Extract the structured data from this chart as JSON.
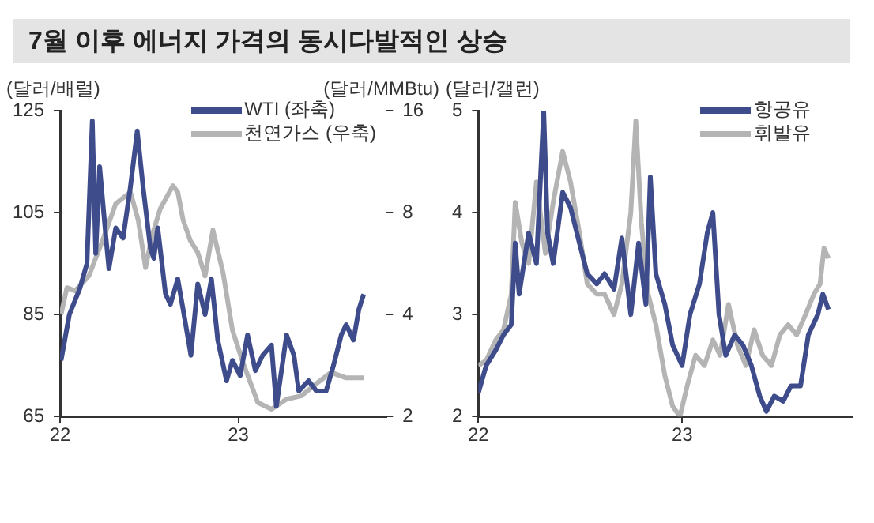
{
  "chart_data": [
    {
      "type": "line",
      "title": "7월 이후 에너지 가격의 동시다발적인 상승",
      "ylabel": "(달러/배럴)",
      "y2label": "(달러/MMBtu)",
      "log": "y2",
      "grid": false,
      "legend": "top right",
      "marker": "none",
      "line_style": "solid",
      "xlim": [
        "2022-01-01",
        "2023-11-01"
      ],
      "xticks": [
        {
          "value": "2022-01-01",
          "label": "22"
        },
        {
          "value": "2023-01-01",
          "label": "23"
        }
      ],
      "ylim": [
        65,
        125
      ],
      "yticks": [
        65,
        85,
        105,
        125
      ],
      "y2lim": [
        2,
        16
      ],
      "y2ticks": [
        2,
        4,
        8,
        16
      ],
      "series": [
        {
          "name": "WTI (좌축)",
          "color": "#3f4c8c",
          "x": [
            "2022-01-03",
            "2022-01-20",
            "2022-02-10",
            "2022-02-25",
            "2022-03-08",
            "2022-03-15",
            "2022-03-23",
            "2022-04-05",
            "2022-04-11",
            "2022-04-25",
            "2022-05-10",
            "2022-05-25",
            "2022-06-08",
            "2022-06-20",
            "2022-07-05",
            "2022-07-12",
            "2022-07-20",
            "2022-08-05",
            "2022-08-15",
            "2022-08-30",
            "2022-09-10",
            "2022-09-26",
            "2022-10-10",
            "2022-10-25",
            "2022-11-07",
            "2022-11-20",
            "2022-12-08",
            "2022-12-20",
            "2023-01-05",
            "2023-01-20",
            "2023-02-05",
            "2023-02-20",
            "2023-03-10",
            "2023-03-20",
            "2023-04-10",
            "2023-04-25",
            "2023-05-05",
            "2023-05-25",
            "2023-06-10",
            "2023-06-30",
            "2023-07-15",
            "2023-07-31",
            "2023-08-10",
            "2023-08-25",
            "2023-09-05",
            "2023-09-15"
          ],
          "values": [
            76,
            85,
            90,
            95,
            123,
            97,
            114,
            100,
            94,
            102,
            100,
            110,
            121,
            110,
            98,
            96,
            102,
            89,
            87,
            92,
            86,
            77,
            91,
            85,
            92,
            80,
            72,
            76,
            73,
            81,
            74,
            77,
            79,
            67,
            81,
            77,
            70,
            72,
            70,
            70,
            75,
            81,
            83,
            80,
            86,
            89
          ]
        },
        {
          "name": "천연가스 (우축)",
          "color": "#b4b4b4",
          "axis": "y2",
          "x": [
            "2022-01-03",
            "2022-01-15",
            "2022-02-01",
            "2022-03-01",
            "2022-04-01",
            "2022-04-25",
            "2022-05-25",
            "2022-06-10",
            "2022-06-25",
            "2022-07-08",
            "2022-07-25",
            "2022-08-20",
            "2022-08-30",
            "2022-09-10",
            "2022-09-25",
            "2022-10-10",
            "2022-10-25",
            "2022-11-10",
            "2022-12-01",
            "2022-12-20",
            "2023-01-10",
            "2023-02-10",
            "2023-03-10",
            "2023-04-10",
            "2023-05-10",
            "2023-06-10",
            "2023-07-10",
            "2023-08-10",
            "2023-09-15"
          ],
          "values": [
            4,
            4.8,
            4.7,
            5.2,
            6.8,
            8.5,
            9.2,
            7.6,
            5.5,
            6.8,
            8.2,
            9.6,
            9.2,
            7.6,
            6.6,
            6.1,
            5.2,
            7.1,
            5.3,
            3.6,
            2.9,
            2.2,
            2.1,
            2.25,
            2.3,
            2.5,
            2.7,
            2.6,
            2.6
          ]
        }
      ]
    },
    {
      "type": "line",
      "ylabel": "(달러/갤런)",
      "grid": false,
      "legend": "top right",
      "marker": "none",
      "line_style": "solid",
      "xlim": [
        "2022-01-01",
        "2023-11-01"
      ],
      "xticks": [
        {
          "value": "2022-01-01",
          "label": "22"
        },
        {
          "value": "2023-01-01",
          "label": "23"
        }
      ],
      "ylim": [
        2,
        5
      ],
      "yticks": [
        2,
        3,
        4,
        5
      ],
      "series": [
        {
          "name": "항공유",
          "color": "#3f4c8c",
          "x": [
            "2022-01-01",
            "2022-01-15",
            "2022-02-01",
            "2022-02-15",
            "2022-03-01",
            "2022-03-08",
            "2022-03-15",
            "2022-04-01",
            "2022-04-15",
            "2022-04-28",
            "2022-05-05",
            "2022-05-15",
            "2022-06-01",
            "2022-06-15",
            "2022-07-01",
            "2022-07-15",
            "2022-08-01",
            "2022-08-15",
            "2022-09-01",
            "2022-09-15",
            "2022-10-01",
            "2022-10-15",
            "2022-10-28",
            "2022-11-05",
            "2022-11-15",
            "2022-12-01",
            "2022-12-15",
            "2023-01-01",
            "2023-01-15",
            "2023-02-01",
            "2023-02-15",
            "2023-02-25",
            "2023-03-08",
            "2023-03-20",
            "2023-04-05",
            "2023-04-20",
            "2023-05-05",
            "2023-05-20",
            "2023-06-01",
            "2023-06-15",
            "2023-07-01",
            "2023-07-15",
            "2023-08-01",
            "2023-08-15",
            "2023-09-01",
            "2023-09-10",
            "2023-09-20"
          ],
          "values": [
            2.23,
            2.5,
            2.65,
            2.8,
            2.9,
            3.7,
            3.2,
            3.8,
            3.5,
            5,
            3.8,
            3.5,
            4.2,
            4.05,
            3.7,
            3.4,
            3.3,
            3.4,
            3.25,
            3.75,
            3,
            3.7,
            3.1,
            4.35,
            3.4,
            3.1,
            2.7,
            2.5,
            3,
            3.3,
            3.8,
            4,
            3,
            2.6,
            2.8,
            2.7,
            2.5,
            2.2,
            2.05,
            2.2,
            2.15,
            2.3,
            2.3,
            2.8,
            3,
            3.2,
            3.05
          ]
        },
        {
          "name": "휘발유",
          "color": "#b4b4b4",
          "x": [
            "2022-01-01",
            "2022-01-15",
            "2022-02-01",
            "2022-02-15",
            "2022-03-01",
            "2022-03-08",
            "2022-03-20",
            "2022-04-01",
            "2022-04-15",
            "2022-05-01",
            "2022-05-15",
            "2022-06-01",
            "2022-06-15",
            "2022-07-01",
            "2022-07-15",
            "2022-08-01",
            "2022-08-15",
            "2022-09-01",
            "2022-09-15",
            "2022-10-01",
            "2022-10-10",
            "2022-10-20",
            "2022-11-01",
            "2022-11-15",
            "2022-12-01",
            "2022-12-15",
            "2022-12-28",
            "2023-01-10",
            "2023-01-25",
            "2023-02-10",
            "2023-02-25",
            "2023-03-10",
            "2023-03-25",
            "2023-04-10",
            "2023-04-25",
            "2023-05-10",
            "2023-05-25",
            "2023-06-10",
            "2023-06-25",
            "2023-07-10",
            "2023-07-25",
            "2023-08-10",
            "2023-08-25",
            "2023-09-05",
            "2023-09-12",
            "2023-09-20"
          ],
          "values": [
            2.5,
            2.55,
            2.75,
            2.85,
            3.2,
            4.1,
            3.7,
            3.5,
            4.3,
            3.6,
            4.1,
            4.6,
            4.3,
            3.8,
            3.3,
            3.2,
            3.2,
            3,
            3.3,
            4,
            4.9,
            3.9,
            3.2,
            2.9,
            2.4,
            2.1,
            2,
            2.3,
            2.6,
            2.5,
            2.75,
            2.6,
            3.1,
            2.7,
            2.5,
            2.85,
            2.6,
            2.5,
            2.8,
            2.9,
            2.8,
            3,
            3.2,
            3.3,
            3.65,
            3.55
          ]
        }
      ]
    }
  ]
}
